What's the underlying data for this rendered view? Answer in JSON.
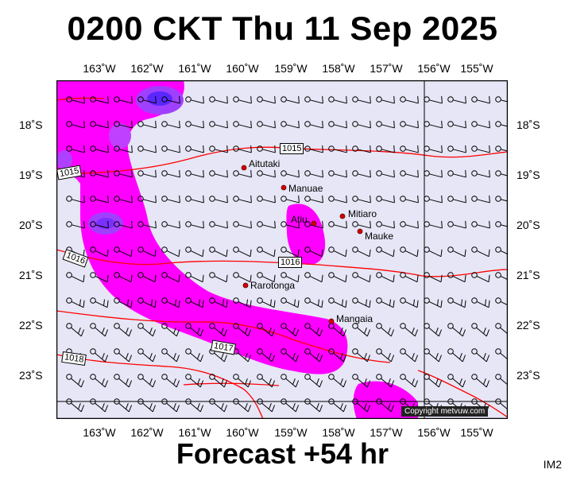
{
  "title": "0200 CKT Thu 11 Sep 2025",
  "footer": "Forecast +54 hr",
  "code": "IM2",
  "copyright": "Copyright metvuw.com",
  "colors": {
    "background": "#e8e8f8",
    "rain_light": "#ff00ff",
    "rain_heavy": "#6a2aff",
    "isobar": "#ff0000"
  },
  "axes": {
    "lon_labels": [
      "163˚W",
      "162˚W",
      "161˚W",
      "160˚W",
      "159˚W",
      "158˚W",
      "157˚W",
      "156˚W",
      "155˚W"
    ],
    "lat_labels": [
      "18˚S",
      "19˚S",
      "20˚S",
      "21˚S",
      "22˚S",
      "23˚S"
    ]
  },
  "isobars": [
    "1015",
    "1015",
    "1016",
    "1016",
    "1017",
    "1018"
  ],
  "places": [
    {
      "name": "Aitutaki"
    },
    {
      "name": "Manuae"
    },
    {
      "name": "Atiu"
    },
    {
      "name": "Mitiaro"
    },
    {
      "name": "Mauke"
    },
    {
      "name": "Rarotonga"
    },
    {
      "name": "Mangaia"
    }
  ]
}
